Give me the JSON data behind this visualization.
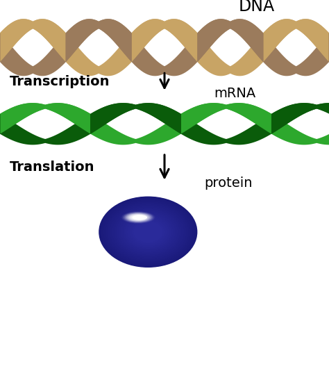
{
  "bg_color": "#ffffff",
  "dna_color1": "#C8A465",
  "dna_color2": "#9B7B5C",
  "mrna_color_light": "#2da82d",
  "mrna_color_dark": "#0a5c0a",
  "protein_color_dark": "#1a1a7a",
  "protein_color_mid": "#2e2e9a",
  "protein_highlight": "#9090dd",
  "protein_white": "#e8e8ff",
  "text_color": "#000000",
  "arrow_color": "#000000",
  "label_dna": "DNA",
  "label_transcription": "Transcription",
  "label_mrna": "mRNA",
  "label_translation": "Translation",
  "label_protein": "protein",
  "fig_width": 4.74,
  "fig_height": 5.31,
  "dpi": 100
}
